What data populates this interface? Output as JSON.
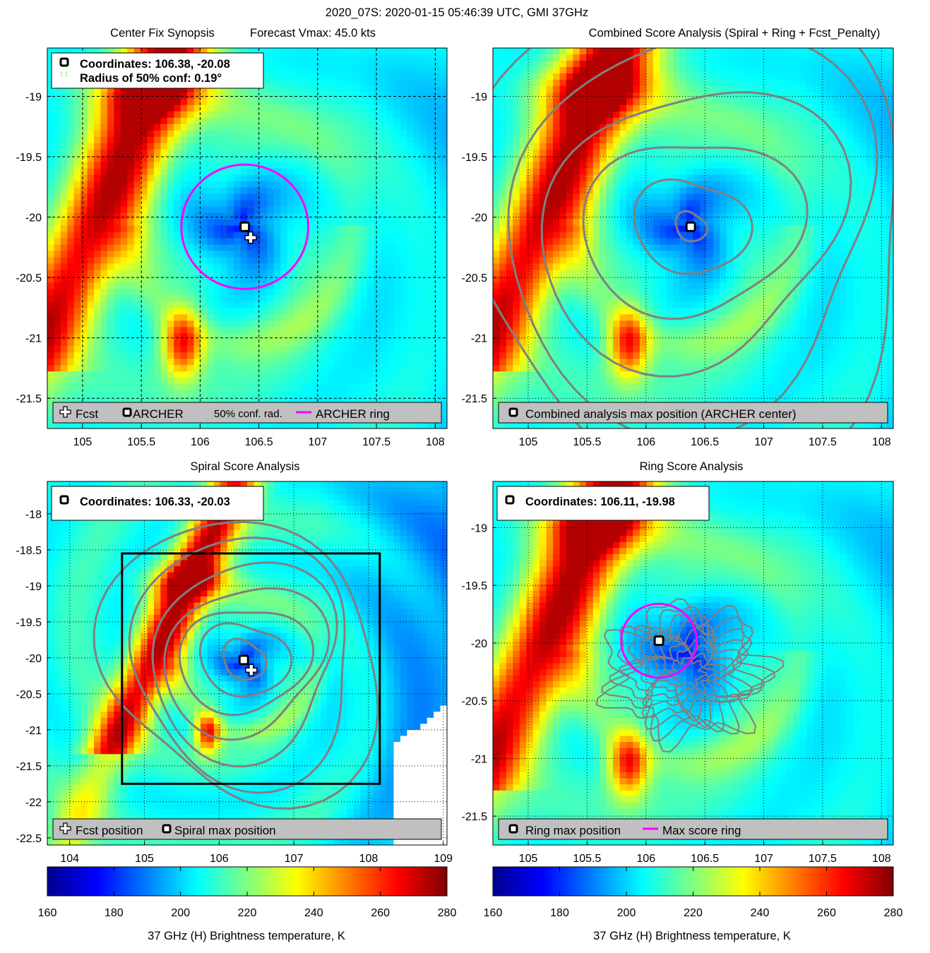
{
  "suptitle": "2020_07S: 2020-01-15 05:46:39 UTC, GMI 37GHz",
  "colors": {
    "ring": "#ff00ff",
    "contour": "#808080",
    "grid": "#000000",
    "legend_bg": "#c0c0c0",
    "conf_dot": "#22bb22"
  },
  "colorbar": {
    "min": 160,
    "max": 280,
    "ticks": [
      "160",
      "180",
      "200",
      "220",
      "240",
      "260",
      "280"
    ],
    "label": "37 GHz (H) Brightness temperature, K",
    "colormap": "jet"
  },
  "chart_data": [
    {
      "id": "p1",
      "type": "heatmap",
      "title_left": "Center Fix Synopsis",
      "title_right": "Forecast Vmax: 45.0 kts",
      "xlim": [
        104.7,
        108.1
      ],
      "ylim": [
        -21.75,
        -18.6
      ],
      "xticks": [
        "105",
        "105.5",
        "106",
        "106.5",
        "107",
        "107.5",
        "108"
      ],
      "yticks": [
        "-19",
        "-19.5",
        "-20",
        "-20.5",
        "-21",
        "-21.5"
      ],
      "grid": true,
      "info_lines": [
        "Coordinates: 106.38, -20.08",
        "Radius of 50% conf: 0.19°"
      ],
      "legend_items": [
        "Fcst",
        "ARCHER",
        "50% conf. rad.",
        "ARCHER ring"
      ],
      "center": [
        106.38,
        -20.08
      ],
      "forecast": [
        106.43,
        -20.17
      ],
      "conf_radius_deg": 0.19,
      "ring_radius_deg": 0.54
    },
    {
      "id": "p2",
      "type": "heatmap",
      "title": "Combined Score Analysis (Spiral + Ring + Fcst_Penalty)",
      "xlim": [
        104.7,
        108.1
      ],
      "ylim": [
        -21.75,
        -18.6
      ],
      "xticks": [
        "105",
        "105.5",
        "106",
        "106.5",
        "107",
        "107.5",
        "108"
      ],
      "yticks": [
        "-19",
        "-19.5",
        "-20",
        "-20.5",
        "-21",
        "-21.5"
      ],
      "grid": false,
      "legend_items": [
        "Combined analysis max position (ARCHER center)"
      ],
      "center": [
        106.38,
        -20.08
      ]
    },
    {
      "id": "p3",
      "type": "heatmap",
      "title": "Spiral Score Analysis",
      "xlim": [
        103.7,
        109.05
      ],
      "ylim": [
        -22.6,
        -17.55
      ],
      "xticks": [
        "104",
        "105",
        "106",
        "107",
        "108",
        "109"
      ],
      "yticks": [
        "-18",
        "-18.5",
        "-19",
        "-19.5",
        "-20",
        "-20.5",
        "-21",
        "-21.5",
        "-22",
        "-22.5"
      ],
      "grid": false,
      "info_lines": [
        "Coordinates: 106.33, -20.03"
      ],
      "legend_items": [
        "Fcst position",
        "Spiral max position"
      ],
      "center": [
        106.33,
        -20.03
      ],
      "forecast": [
        106.43,
        -20.17
      ],
      "search_box": [
        104.7,
        108.15,
        -21.75,
        -18.55
      ]
    },
    {
      "id": "p4",
      "type": "heatmap",
      "title": "Ring Score Analysis",
      "xlim": [
        104.7,
        108.1
      ],
      "ylim": [
        -21.75,
        -18.6
      ],
      "xticks": [
        "105",
        "105.5",
        "106",
        "106.5",
        "107",
        "107.5",
        "108"
      ],
      "yticks": [
        "-19",
        "-19.5",
        "-20",
        "-20.5",
        "-21",
        "-21.5"
      ],
      "grid": false,
      "info_lines": [
        "Coordinates: 106.11, -19.98"
      ],
      "legend_items": [
        "Ring max position",
        "Max score ring"
      ],
      "center": [
        106.11,
        -19.98
      ],
      "ring_radius_deg": 0.32
    }
  ]
}
